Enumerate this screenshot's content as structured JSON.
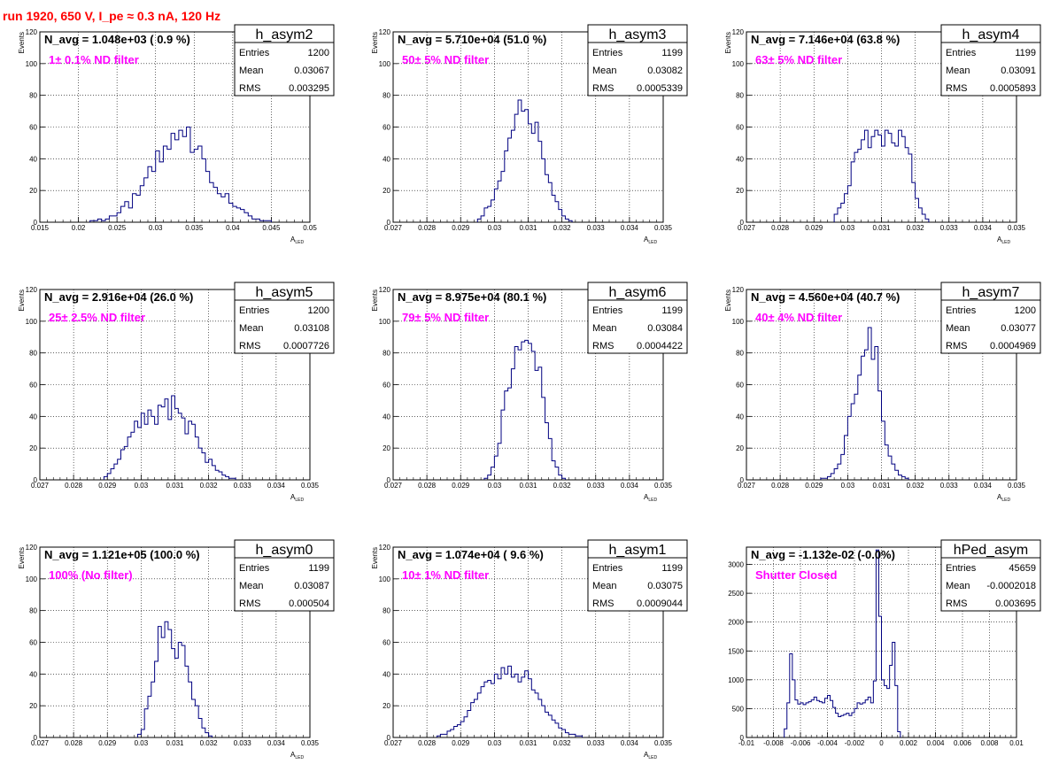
{
  "canvas_title": "run 1920,   650 V, I_pe ≈ 0.3 nA, 120 Hz",
  "chart_data": [
    {
      "type": "bar",
      "name": "h_asym2",
      "navg": "N_avg = 1.048e+03 ( 0.9 %)",
      "filter_label": "1± 0.1% ND filter",
      "stats": {
        "entries": "1200",
        "mean": "0.03067",
        "rms": "0.003295"
      },
      "xlabel": "A",
      "xlabel_sub": "LED",
      "ylabel": "Events",
      "xlim": [
        0.015,
        0.05
      ],
      "ylim": [
        0,
        120
      ],
      "xticks": [
        0.015,
        0.02,
        0.025,
        0.03,
        0.035,
        0.04,
        0.045,
        0.05
      ],
      "xtick_labels": [
        "0.015",
        "0.02",
        "0.025",
        "0.03",
        "0.035",
        "0.04",
        "0.045",
        "0.05"
      ],
      "yticks": [
        0,
        20,
        40,
        60,
        80,
        100,
        120
      ],
      "ytick_labels": [
        "0",
        "20",
        "40",
        "60",
        "80",
        "100",
        "120"
      ],
      "grid": true,
      "bin_start": 0.0215,
      "bin_width": 0.0005,
      "values": [
        1,
        1,
        2,
        1,
        2,
        4,
        4,
        6,
        10,
        13,
        9,
        18,
        17,
        23,
        28,
        35,
        32,
        45,
        38,
        48,
        46,
        56,
        52,
        58,
        54,
        60,
        44,
        46,
        48,
        40,
        32,
        25,
        22,
        18,
        16,
        18,
        12,
        10,
        9,
        8,
        6,
        4,
        2,
        2,
        1,
        1,
        1
      ]
    },
    {
      "type": "bar",
      "name": "h_asym3",
      "navg": "N_avg = 5.710e+04 (51.0 %)",
      "filter_label": "50± 5% ND filter",
      "stats": {
        "entries": "1199",
        "mean": "0.03082",
        "rms": "0.0005339"
      },
      "xlabel": "A",
      "xlabel_sub": "LED",
      "ylabel": "Events",
      "xlim": [
        0.027,
        0.035
      ],
      "ylim": [
        0,
        120
      ],
      "xticks": [
        0.027,
        0.028,
        0.029,
        0.03,
        0.031,
        0.032,
        0.033,
        0.034,
        0.035
      ],
      "xtick_labels": [
        "0.027",
        "0.028",
        "0.029",
        "0.03",
        "0.031",
        "0.032",
        "0.033",
        "0.034",
        "0.035"
      ],
      "yticks": [
        0,
        20,
        40,
        60,
        80,
        100,
        120
      ],
      "ytick_labels": [
        "0",
        "20",
        "40",
        "60",
        "80",
        "100",
        "120"
      ],
      "grid": true,
      "bin_start": 0.0295,
      "bin_width": 0.0001,
      "values": [
        2,
        4,
        9,
        10,
        14,
        21,
        26,
        32,
        45,
        53,
        58,
        68,
        77,
        70,
        71,
        62,
        56,
        63,
        51,
        40,
        30,
        25,
        17,
        13,
        8,
        4,
        2,
        1
      ]
    },
    {
      "type": "bar",
      "name": "h_asym4",
      "navg": "N_avg = 7.146e+04 (63.8 %)",
      "filter_label": "63± 5% ND filter",
      "stats": {
        "entries": "1199",
        "mean": "0.03091",
        "rms": "0.0005893"
      },
      "xlabel": "A",
      "xlabel_sub": "LED",
      "ylabel": "Events",
      "xlim": [
        0.027,
        0.035
      ],
      "ylim": [
        0,
        120
      ],
      "xticks": [
        0.027,
        0.028,
        0.029,
        0.03,
        0.031,
        0.032,
        0.033,
        0.034,
        0.035
      ],
      "xtick_labels": [
        "0.027",
        "0.028",
        "0.029",
        "0.03",
        "0.031",
        "0.032",
        "0.033",
        "0.034",
        "0.035"
      ],
      "yticks": [
        0,
        20,
        40,
        60,
        80,
        100,
        120
      ],
      "ytick_labels": [
        "0",
        "20",
        "40",
        "60",
        "80",
        "100",
        "120"
      ],
      "grid": true,
      "bin_start": 0.0296,
      "bin_width": 0.0001,
      "values": [
        5,
        9,
        12,
        18,
        23,
        38,
        44,
        46,
        52,
        58,
        47,
        54,
        58,
        55,
        48,
        58,
        56,
        50,
        48,
        58,
        54,
        47,
        43,
        25,
        15,
        9,
        5,
        2
      ]
    },
    {
      "type": "bar",
      "name": "h_asym5",
      "navg": "N_avg = 2.916e+04 (26.0 %)",
      "filter_label": "25± 2.5% ND filter",
      "stats": {
        "entries": "1200",
        "mean": "0.03108",
        "rms": "0.0007726"
      },
      "xlabel": "A",
      "xlabel_sub": "LED",
      "ylabel": "Events",
      "xlim": [
        0.027,
        0.035
      ],
      "ylim": [
        0,
        120
      ],
      "xticks": [
        0.027,
        0.028,
        0.029,
        0.03,
        0.031,
        0.032,
        0.033,
        0.034,
        0.035
      ],
      "xtick_labels": [
        "0.027",
        "0.028",
        "0.029",
        "0.03",
        "0.031",
        "0.032",
        "0.033",
        "0.034",
        "0.035"
      ],
      "yticks": [
        0,
        20,
        40,
        60,
        80,
        100,
        120
      ],
      "ytick_labels": [
        "0",
        "20",
        "40",
        "60",
        "80",
        "100",
        "120"
      ],
      "grid": true,
      "bin_start": 0.0289,
      "bin_width": 0.0001,
      "values": [
        2,
        4,
        7,
        10,
        13,
        19,
        21,
        27,
        30,
        37,
        33,
        42,
        35,
        44,
        40,
        35,
        47,
        46,
        51,
        38,
        53,
        45,
        42,
        39,
        29,
        37,
        35,
        27,
        20,
        17,
        11,
        13,
        9,
        6,
        5,
        3,
        2,
        1,
        1
      ]
    },
    {
      "type": "bar",
      "name": "h_asym6",
      "navg": "N_avg = 8.975e+04 (80.1 %)",
      "filter_label": "79± 5% ND filter",
      "stats": {
        "entries": "1199",
        "mean": "0.03084",
        "rms": "0.0004422"
      },
      "xlabel": "A",
      "xlabel_sub": "LED",
      "ylabel": "Events",
      "xlim": [
        0.027,
        0.035
      ],
      "ylim": [
        0,
        120
      ],
      "xticks": [
        0.027,
        0.028,
        0.029,
        0.03,
        0.031,
        0.032,
        0.033,
        0.034,
        0.035
      ],
      "xtick_labels": [
        "0.027",
        "0.028",
        "0.029",
        "0.03",
        "0.031",
        "0.032",
        "0.033",
        "0.034",
        "0.035"
      ],
      "yticks": [
        0,
        20,
        40,
        60,
        80,
        100,
        120
      ],
      "ytick_labels": [
        "0",
        "20",
        "40",
        "60",
        "80",
        "100",
        "120"
      ],
      "grid": true,
      "bin_start": 0.0297,
      "bin_width": 0.0001,
      "values": [
        1,
        3,
        8,
        15,
        23,
        44,
        56,
        58,
        70,
        84,
        82,
        87,
        88,
        86,
        81,
        69,
        71,
        52,
        36,
        26,
        12,
        8,
        3,
        1
      ]
    },
    {
      "type": "bar",
      "name": "h_asym7",
      "navg": "N_avg = 4.560e+04 (40.7 %)",
      "filter_label": "40± 4% ND filter",
      "stats": {
        "entries": "1200",
        "mean": "0.03077",
        "rms": "0.0004969"
      },
      "xlabel": "A",
      "xlabel_sub": "LED",
      "ylabel": "Events",
      "xlim": [
        0.027,
        0.035
      ],
      "ylim": [
        0,
        120
      ],
      "xticks": [
        0.027,
        0.028,
        0.029,
        0.03,
        0.031,
        0.032,
        0.033,
        0.034,
        0.035
      ],
      "xtick_labels": [
        "0.027",
        "0.028",
        "0.029",
        "0.03",
        "0.031",
        "0.032",
        "0.033",
        "0.034",
        "0.035"
      ],
      "yticks": [
        0,
        20,
        40,
        60,
        80,
        100,
        120
      ],
      "ytick_labels": [
        "0",
        "20",
        "40",
        "60",
        "80",
        "100",
        "120"
      ],
      "grid": true,
      "bin_start": 0.0292,
      "bin_width": 0.0001,
      "values": [
        1,
        1,
        2,
        4,
        7,
        10,
        16,
        28,
        40,
        48,
        54,
        66,
        78,
        82,
        96,
        76,
        84,
        56,
        37,
        22,
        15,
        10,
        6,
        3,
        2,
        1
      ]
    },
    {
      "type": "bar",
      "name": "h_asym0",
      "navg": "N_avg = 1.121e+05 (100.0 %)",
      "filter_label": "100% (No filter)",
      "stats": {
        "entries": "1199",
        "mean": "0.03087",
        "rms": "0.000504"
      },
      "xlabel": "A",
      "xlabel_sub": "LED",
      "ylabel": "Events",
      "xlim": [
        0.027,
        0.035
      ],
      "ylim": [
        0,
        120
      ],
      "xticks": [
        0.027,
        0.028,
        0.029,
        0.03,
        0.031,
        0.032,
        0.033,
        0.034,
        0.035
      ],
      "xtick_labels": [
        "0.027",
        "0.028",
        "0.029",
        "0.03",
        "0.031",
        "0.032",
        "0.033",
        "0.034",
        "0.035"
      ],
      "yticks": [
        0,
        20,
        40,
        60,
        80,
        100,
        120
      ],
      "ytick_labels": [
        "0",
        "20",
        "40",
        "60",
        "80",
        "100",
        "120"
      ],
      "grid": true,
      "bin_start": 0.0299,
      "bin_width": 0.0001,
      "values": [
        2,
        5,
        18,
        26,
        35,
        48,
        70,
        63,
        73,
        68,
        56,
        50,
        60,
        58,
        45,
        35,
        24,
        20,
        12,
        6,
        3,
        1
      ]
    },
    {
      "type": "bar",
      "name": "h_asym1",
      "navg": "N_avg = 1.074e+04 ( 9.6 %)",
      "filter_label": "10± 1% ND filter",
      "stats": {
        "entries": "1199",
        "mean": "0.03075",
        "rms": "0.0009044"
      },
      "xlabel": "A",
      "xlabel_sub": "LED",
      "ylabel": "Events",
      "xlim": [
        0.027,
        0.035
      ],
      "ylim": [
        0,
        120
      ],
      "xticks": [
        0.027,
        0.028,
        0.029,
        0.03,
        0.031,
        0.032,
        0.033,
        0.034,
        0.035
      ],
      "xtick_labels": [
        "0.027",
        "0.028",
        "0.029",
        "0.03",
        "0.031",
        "0.032",
        "0.033",
        "0.034",
        "0.035"
      ],
      "yticks": [
        0,
        20,
        40,
        60,
        80,
        100,
        120
      ],
      "ytick_labels": [
        "0",
        "20",
        "40",
        "60",
        "80",
        "100",
        "120"
      ],
      "grid": true,
      "bin_start": 0.0283,
      "bin_width": 0.0001,
      "values": [
        1,
        2,
        2,
        4,
        5,
        7,
        8,
        10,
        13,
        17,
        22,
        24,
        28,
        32,
        35,
        36,
        34,
        40,
        37,
        44,
        40,
        45,
        38,
        40,
        35,
        38,
        42,
        37,
        30,
        28,
        24,
        20,
        16,
        14,
        11,
        9,
        6,
        5,
        3,
        2,
        2,
        1,
        1
      ]
    },
    {
      "type": "bar",
      "name": "hPed_asym",
      "navg": "N_avg = -1.132e-02 (-0.0%)",
      "filter_label": "Shutter Closed",
      "stats": {
        "entries": "45659",
        "mean": "-0.0002018",
        "rms": "0.003695"
      },
      "xlabel": "",
      "xlabel_sub": "",
      "ylabel": "",
      "xlim": [
        -0.01,
        0.01
      ],
      "ylim": [
        0,
        3300
      ],
      "xticks": [
        -0.01,
        -0.008,
        -0.006,
        -0.004,
        -0.002,
        0,
        0.002,
        0.004,
        0.006,
        0.008,
        0.01
      ],
      "xtick_labels": [
        "-0.01",
        "-0.008",
        "-0.006",
        "-0.004",
        "-0.002",
        "0",
        "0.002",
        "0.004",
        "0.006",
        "0.008",
        "0.01"
      ],
      "yticks": [
        0,
        500,
        1000,
        1500,
        2000,
        2500,
        3000
      ],
      "ytick_labels": [
        "0",
        "500",
        "1000",
        "1500",
        "2000",
        "2500",
        "3000"
      ],
      "grid": true,
      "bin_start": -0.0072,
      "bin_width": 0.0002,
      "values": [
        150,
        600,
        1450,
        1000,
        650,
        580,
        600,
        570,
        600,
        620,
        650,
        700,
        640,
        620,
        600,
        680,
        730,
        640,
        520,
        420,
        360,
        380,
        400,
        420,
        380,
        430,
        500,
        600,
        580,
        600,
        650,
        700,
        600,
        980,
        3250,
        2100,
        1000,
        900,
        850,
        1250,
        1650,
        900,
        100
      ]
    }
  ]
}
